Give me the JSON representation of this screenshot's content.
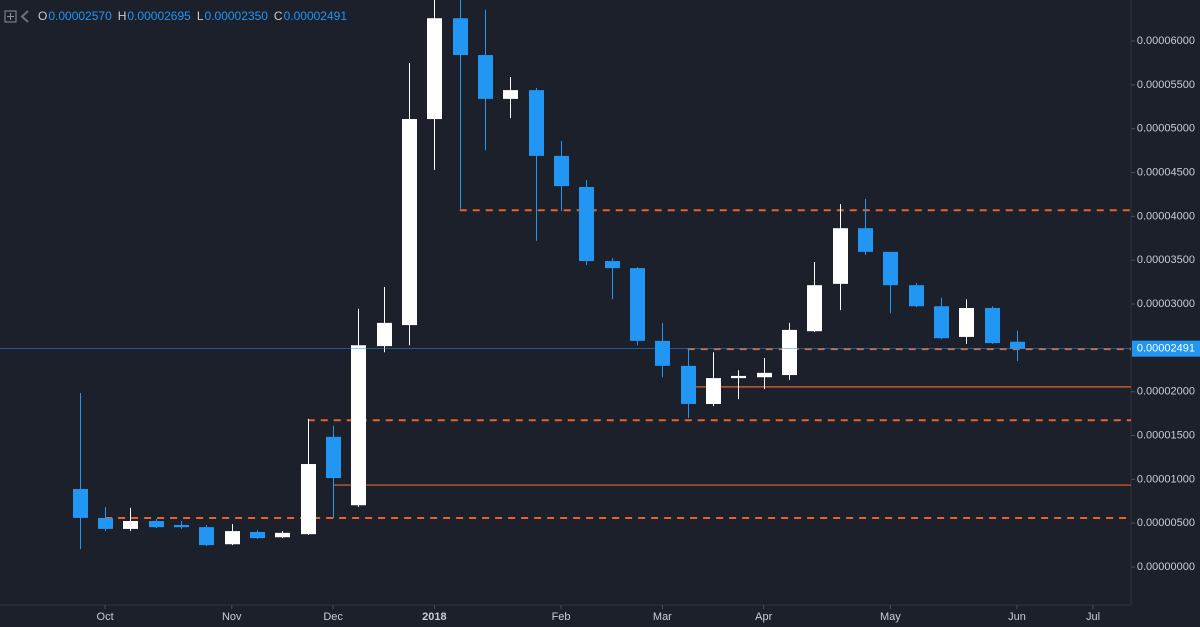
{
  "chart_data": {
    "type": "candlestick",
    "header": [
      {
        "key": "O",
        "text": "0.00002570"
      },
      {
        "key": "H",
        "text": "0.00002695"
      },
      {
        "key": "L",
        "text": "0.00002350"
      },
      {
        "key": "C",
        "text": "0.00002491"
      }
    ],
    "x": [
      0,
      1,
      2,
      3,
      4,
      5,
      6,
      7,
      8,
      9,
      10,
      11,
      12,
      13,
      14,
      15,
      16,
      17,
      18,
      19,
      20,
      21,
      22,
      23,
      24,
      25,
      26,
      27,
      28,
      29,
      30,
      31,
      32,
      33,
      34,
      35,
      36,
      37
    ],
    "open": [
      8.9e-06,
      5.6e-06,
      4.35e-06,
      5.25e-06,
      4.8e-06,
      4.55e-06,
      2.6e-06,
      4e-06,
      3.4e-06,
      3.75e-06,
      1.485e-05,
      7.05e-06,
      2.52e-05,
      2.76e-05,
      5.11e-05,
      6.26e-05,
      5.84e-05,
      5.34e-05,
      5.44e-05,
      4.69e-05,
      4.335e-05,
      3.49e-05,
      3.41e-05,
      2.58e-05,
      2.295e-05,
      1.86e-05,
      2.155e-05,
      2.165e-05,
      2.19e-05,
      2.69e-05,
      3.23e-05,
      3.865e-05,
      3.595e-05,
      3.215e-05,
      2.975e-05,
      2.625e-05,
      2.955e-05,
      2.57e-05
    ],
    "high": [
      1.985e-05,
      6.85e-06,
      6.75e-06,
      5.5e-06,
      5.25e-06,
      4.8e-06,
      4.9e-06,
      4.2e-06,
      4.1e-06,
      1.69e-05,
      1.61e-05,
      2.945e-05,
      3.195e-05,
      5.75e-05,
      6.47e-05,
      6.47e-05,
      6.355e-05,
      5.59e-05,
      5.465e-05,
      4.86e-05,
      4.415e-05,
      3.525e-05,
      3.42e-05,
      2.785e-05,
      2.485e-05,
      2.45e-05,
      2.245e-05,
      2.385e-05,
      2.785e-05,
      3.48e-05,
      4.14e-05,
      4.2e-05,
      3.595e-05,
      3.24e-05,
      3.07e-05,
      3.055e-05,
      2.975e-05,
      2.695e-05
    ],
    "low": [
      2.05e-06,
      4.1e-06,
      4.1e-06,
      4.45e-06,
      4.35e-06,
      2.4e-06,
      2.5e-06,
      3.2e-06,
      3.3e-06,
      3.65e-06,
      5.6e-06,
      6.85e-06,
      2.45e-05,
      2.53e-05,
      4.53e-05,
      4.085e-05,
      4.755e-05,
      5.12e-05,
      3.72e-05,
      4.06e-05,
      3.445e-05,
      3.055e-05,
      2.53e-05,
      2.165e-05,
      1.7e-05,
      1.835e-05,
      1.915e-05,
      2.03e-05,
      2.135e-05,
      2.68e-05,
      2.93e-05,
      3.56e-05,
      2.895e-05,
      2.965e-05,
      2.6e-05,
      2.545e-05,
      2.545e-05,
      2.35e-05
    ],
    "close": [
      5.6e-06,
      4.35e-06,
      5.25e-06,
      4.55e-06,
      4.55e-06,
      2.5e-06,
      4.1e-06,
      3.3e-06,
      3.9e-06,
      1.175e-05,
      1.015e-05,
      2.53e-05,
      2.785e-05,
      5.11e-05,
      6.26e-05,
      5.84e-05,
      5.34e-05,
      5.44e-05,
      4.69e-05,
      4.345e-05,
      3.49e-05,
      3.41e-05,
      2.58e-05,
      2.295e-05,
      1.86e-05,
      2.155e-05,
      2.18e-05,
      2.215e-05,
      2.705e-05,
      3.215e-05,
      3.865e-05,
      3.595e-05,
      3.215e-05,
      2.975e-05,
      2.61e-05,
      2.955e-05,
      2.555e-05,
      2.491e-05
    ],
    "up_color": "#ffffff",
    "down_color": "#2196f3",
    "price_label": "0.00002491",
    "xlim": [
      -3.15,
      41.5
    ],
    "xticks": [
      {
        "value": 1,
        "label": "Oct"
      },
      {
        "value": 6,
        "label": "Nov"
      },
      {
        "value": 10,
        "label": "Dec"
      },
      {
        "value": 14,
        "label": "2018"
      },
      {
        "value": 19,
        "label": "Feb"
      },
      {
        "value": 23,
        "label": "Mar"
      },
      {
        "value": 27,
        "label": "Apr"
      },
      {
        "value": 32,
        "label": "May"
      },
      {
        "value": 37,
        "label": "Jun"
      },
      {
        "value": 40,
        "label": "Jul"
      }
    ],
    "ylim": [
      -4.33e-06,
      6.468e-05
    ],
    "yticks": [
      {
        "value": 0,
        "label": "0.00000000"
      },
      {
        "value": 5e-06,
        "label": "0.00000500"
      },
      {
        "value": 1e-05,
        "label": "0.00001000"
      },
      {
        "value": 1.5e-05,
        "label": "0.00001500"
      },
      {
        "value": 2e-05,
        "label": "0.00002000"
      },
      {
        "value": 2.5e-05,
        "label": "0.00002500"
      },
      {
        "value": 3e-05,
        "label": "0.00003000"
      },
      {
        "value": 3.5e-05,
        "label": "0.00003500"
      },
      {
        "value": 4e-05,
        "label": "0.00004000"
      },
      {
        "value": 4.5e-05,
        "label": "0.00004500"
      },
      {
        "value": 5e-05,
        "label": "0.00005000"
      },
      {
        "value": 5.5e-05,
        "label": "0.00005500"
      },
      {
        "value": 6e-05,
        "label": "0.00006000"
      }
    ],
    "levels": [
      {
        "value": 4.07e-05,
        "start": 15,
        "dashed": true,
        "color": "#e8632b"
      },
      {
        "value": 2.485e-05,
        "start": 24,
        "dashed": true,
        "color": "#e8632b"
      },
      {
        "value": 1.675e-05,
        "start": 9,
        "dashed": true,
        "color": "#e8632b"
      },
      {
        "value": 5.6e-06,
        "start": 1,
        "dashed": true,
        "color": "#e8632b"
      },
      {
        "value": 2.055e-05,
        "start": 24,
        "dashed": false,
        "color": "#e8632b"
      },
      {
        "value": 9.35e-06,
        "start": 10,
        "dashed": false,
        "color": "#e8632b"
      }
    ]
  }
}
